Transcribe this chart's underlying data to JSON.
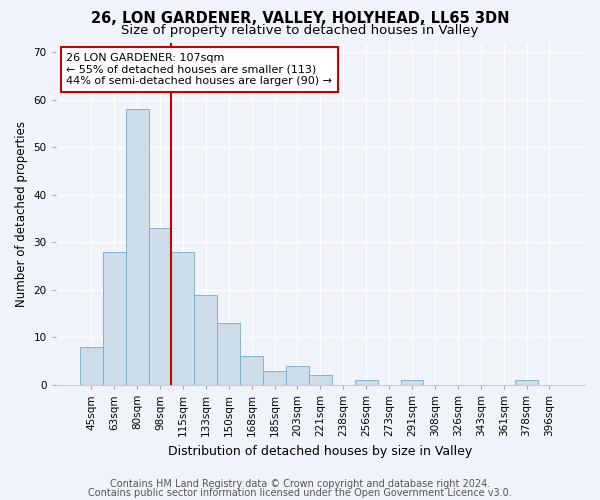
{
  "title": "26, LON GARDENER, VALLEY, HOLYHEAD, LL65 3DN",
  "subtitle": "Size of property relative to detached houses in Valley",
  "xlabel": "Distribution of detached houses by size in Valley",
  "ylabel": "Number of detached properties",
  "categories": [
    "45sqm",
    "63sqm",
    "80sqm",
    "98sqm",
    "115sqm",
    "133sqm",
    "150sqm",
    "168sqm",
    "185sqm",
    "203sqm",
    "221sqm",
    "238sqm",
    "256sqm",
    "273sqm",
    "291sqm",
    "308sqm",
    "326sqm",
    "343sqm",
    "361sqm",
    "378sqm",
    "396sqm"
  ],
  "values": [
    8,
    28,
    58,
    33,
    28,
    19,
    13,
    6,
    3,
    4,
    2,
    0,
    1,
    0,
    1,
    0,
    0,
    0,
    0,
    1,
    0
  ],
  "bar_color": "#ccdce8",
  "bar_edge_color": "#7aaac8",
  "red_line_x": 3.5,
  "annotation_line1": "26 LON GARDENER: 107sqm",
  "annotation_line2": "← 55% of detached houses are smaller (113)",
  "annotation_line3": "44% of semi-detached houses are larger (90) →",
  "annotation_box_edge": "#cc0000",
  "ylim": [
    0,
    72
  ],
  "yticks": [
    0,
    10,
    20,
    30,
    40,
    50,
    60,
    70
  ],
  "footer1": "Contains HM Land Registry data © Crown copyright and database right 2024.",
  "footer2": "Contains public sector information licensed under the Open Government Licence v3.0.",
  "background_color": "#f0f4fa",
  "plot_bg_color": "#f0f4fa",
  "title_fontsize": 10.5,
  "subtitle_fontsize": 9.5,
  "xlabel_fontsize": 9,
  "ylabel_fontsize": 8.5,
  "tick_fontsize": 7.5,
  "annot_fontsize": 8,
  "footer_fontsize": 7
}
